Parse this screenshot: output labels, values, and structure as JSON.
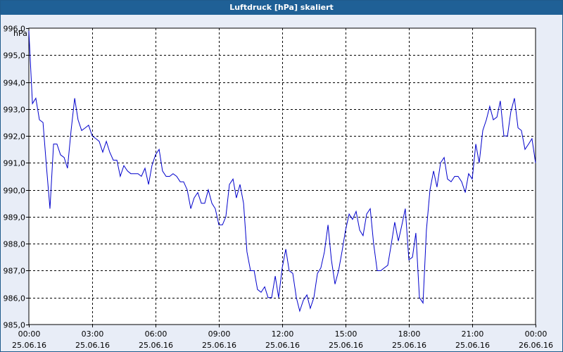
{
  "window": {
    "title": "Luftdruck [hPa] skaliert"
  },
  "chart_data": {
    "type": "line",
    "title": "Luftdruck [hPa] skaliert",
    "ylabel": "hPa",
    "xlabel": "",
    "ylim": [
      985.0,
      996.0
    ],
    "yticks": [
      "996,0",
      "995,0",
      "994,0",
      "993,0",
      "992,0",
      "991,0",
      "990,0",
      "989,0",
      "988,0",
      "987,0",
      "986,0",
      "985,0"
    ],
    "xlim_hours": [
      0,
      24
    ],
    "xticks": [
      {
        "time": "00:00",
        "date": "25.06.16"
      },
      {
        "time": "03:00",
        "date": "25.06.16"
      },
      {
        "time": "06:00",
        "date": "25.06.16"
      },
      {
        "time": "09:00",
        "date": "25.06.16"
      },
      {
        "time": "12:00",
        "date": "25.06.16"
      },
      {
        "time": "15:00",
        "date": "25.06.16"
      },
      {
        "time": "18:00",
        "date": "25.06.16"
      },
      {
        "time": "21:00",
        "date": "25.06.16"
      },
      {
        "time": "00:00",
        "date": "26.06.16"
      }
    ],
    "grid": true,
    "line_color": "#0000cc",
    "series": [
      {
        "x_hours": [
          0.0,
          0.17,
          0.33,
          0.5,
          0.67,
          0.83,
          1.0,
          1.17,
          1.33,
          1.5,
          1.67,
          1.83,
          2.0,
          2.17,
          2.33,
          2.5,
          2.67,
          2.83,
          3.0,
          3.17,
          3.33,
          3.5,
          3.67,
          3.83,
          4.0,
          4.17,
          4.33,
          4.5,
          4.67,
          4.83,
          5.0,
          5.17,
          5.33,
          5.5,
          5.67,
          5.83,
          6.0,
          6.17,
          6.33,
          6.5,
          6.67,
          6.83,
          7.0,
          7.17,
          7.33,
          7.5,
          7.67,
          7.83,
          8.0,
          8.17,
          8.33,
          8.5,
          8.67,
          8.83,
          9.0,
          9.17,
          9.33,
          9.5,
          9.67,
          9.83,
          10.0,
          10.17,
          10.33,
          10.5,
          10.67,
          10.83,
          11.0,
          11.17,
          11.33,
          11.5,
          11.67,
          11.83,
          12.0,
          12.17,
          12.33,
          12.5,
          12.67,
          12.83,
          13.0,
          13.17,
          13.33,
          13.5,
          13.67,
          13.83,
          14.0,
          14.17,
          14.33,
          14.5,
          14.67,
          14.83,
          15.0,
          15.17,
          15.33,
          15.5,
          15.67,
          15.83,
          16.0,
          16.17,
          16.33,
          16.5,
          16.67,
          16.83,
          17.0,
          17.17,
          17.33,
          17.5,
          17.67,
          17.83,
          18.0,
          18.17,
          18.33,
          18.5,
          18.67,
          18.83,
          19.0,
          19.17,
          19.33,
          19.5,
          19.67,
          19.83,
          20.0,
          20.17,
          20.33,
          20.5,
          20.67,
          20.83,
          21.0,
          21.17,
          21.33,
          21.5,
          21.67,
          21.83,
          22.0,
          22.17,
          22.33,
          22.5,
          22.67,
          22.83,
          23.0,
          23.17,
          23.33,
          23.5,
          23.67,
          23.83,
          24.0
        ],
        "values": [
          995.9,
          993.2,
          993.4,
          992.6,
          992.5,
          990.9,
          989.3,
          991.7,
          991.7,
          991.3,
          991.2,
          990.8,
          992.2,
          993.4,
          992.6,
          992.2,
          992.3,
          992.4,
          992.0,
          991.9,
          991.8,
          991.4,
          991.8,
          991.4,
          991.1,
          991.1,
          990.5,
          990.9,
          990.7,
          990.6,
          990.6,
          990.6,
          990.5,
          990.8,
          990.2,
          990.9,
          991.3,
          991.5,
          990.7,
          990.5,
          990.5,
          990.6,
          990.5,
          990.3,
          990.3,
          990.0,
          989.3,
          989.7,
          989.9,
          989.5,
          989.5,
          990.0,
          989.5,
          989.3,
          988.7,
          988.7,
          989.0,
          990.2,
          990.4,
          989.7,
          990.2,
          989.5,
          987.7,
          987.0,
          987.0,
          986.3,
          986.2,
          986.4,
          986.0,
          986.0,
          986.8,
          986.0,
          987.1,
          987.8,
          987.0,
          986.9,
          986.0,
          985.5,
          985.9,
          986.1,
          985.6,
          986.0,
          986.9,
          987.1,
          987.7,
          988.7,
          987.4,
          986.5,
          987.0,
          987.7,
          988.5,
          989.1,
          988.9,
          989.2,
          988.5,
          988.3,
          989.1,
          989.3,
          988.0,
          987.0,
          987.0,
          987.1,
          987.2,
          988.0,
          988.8,
          988.1,
          988.7,
          989.3,
          987.4,
          987.5,
          988.4,
          986.0,
          985.8,
          988.5,
          990.0,
          990.7,
          990.1,
          991.0,
          991.2,
          990.4,
          990.3,
          990.5,
          990.5,
          990.3,
          989.9,
          990.6,
          990.4,
          991.7,
          991.0,
          992.2,
          992.6,
          993.1,
          992.6,
          992.7,
          993.3,
          992.0,
          992.0,
          992.9,
          993.4,
          992.3,
          992.2,
          991.5,
          991.7,
          991.9,
          991.0
        ]
      }
    ]
  }
}
